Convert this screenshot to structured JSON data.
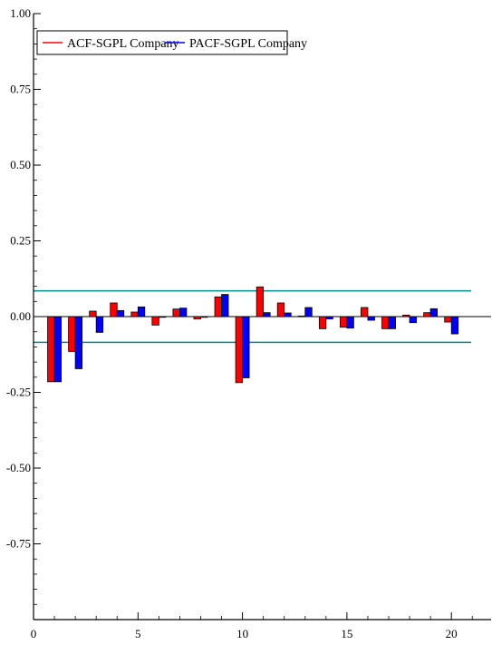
{
  "chart_data": {
    "type": "bar",
    "x": [
      1,
      2,
      3,
      4,
      5,
      6,
      7,
      8,
      9,
      10,
      11,
      12,
      13,
      14,
      15,
      16,
      17,
      18,
      19,
      20
    ],
    "series": [
      {
        "name": "ACF-SGPL Company",
        "color": "#ff0000",
        "values": [
          -0.215,
          -0.115,
          0.018,
          0.045,
          0.015,
          -0.028,
          0.025,
          -0.008,
          0.065,
          -0.218,
          0.098,
          0.045,
          0.002,
          -0.04,
          -0.035,
          0.03,
          -0.04,
          0.005,
          0.013,
          -0.018
        ]
      },
      {
        "name": "PACF-SGPL Company",
        "color": "#0000ff",
        "values": [
          -0.215,
          -0.172,
          -0.052,
          0.02,
          0.032,
          -0.002,
          0.028,
          -0.002,
          0.073,
          -0.202,
          0.013,
          0.012,
          0.03,
          -0.008,
          -0.038,
          -0.012,
          -0.04,
          -0.02,
          0.026,
          -0.057
        ]
      }
    ],
    "confidence_band": {
      "upper": 0.085,
      "lower": -0.085,
      "color": "#008b8b"
    },
    "xlim": [
      0,
      21.9
    ],
    "ylim": [
      -1.0,
      1.0
    ],
    "x_ticks": [
      0,
      5,
      10,
      15,
      20
    ],
    "x_tick_labels": [
      "0",
      "5",
      "10",
      "15",
      "20"
    ],
    "y_ticks": [
      -0.75,
      -0.5,
      -0.25,
      0.0,
      0.25,
      0.5,
      0.75,
      1.0
    ],
    "y_tick_labels": [
      "-0.75",
      "-0.50",
      "-0.25",
      "0.00",
      "0.25",
      "0.50",
      "0.75",
      "1.00"
    ],
    "legend_position": "top-left",
    "grid": false
  }
}
